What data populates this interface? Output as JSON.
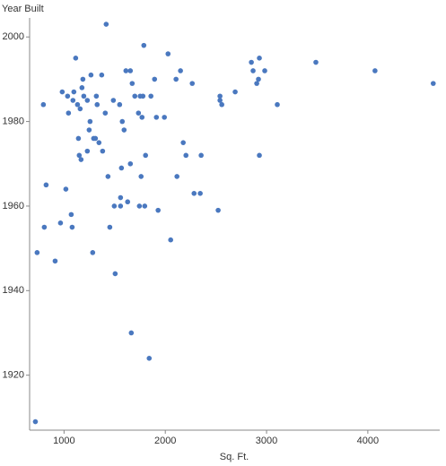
{
  "chart_data": {
    "type": "scatter",
    "y_label": "Year Built",
    "x_label": "Sq. Ft.",
    "color": "#4a78bf",
    "xlim": [
      660,
      4710
    ],
    "ylim": [
      1907,
      2004.5
    ],
    "xticks": [
      1000,
      2000,
      3000,
      4000
    ],
    "yticks": [
      1920,
      1940,
      1960,
      1980,
      2000
    ],
    "grid": false,
    "x": [
      717,
      734,
      796,
      805,
      823,
      912,
      965,
      982,
      1018,
      1035,
      1044,
      1071,
      1080,
      1088,
      1097,
      1115,
      1133,
      1142,
      1150,
      1159,
      1168,
      1177,
      1186,
      1195,
      1230,
      1230,
      1248,
      1257,
      1266,
      1283,
      1292,
      1310,
      1319,
      1327,
      1345,
      1372,
      1381,
      1407,
      1416,
      1434,
      1452,
      1487,
      1496,
      1505,
      1549,
      1558,
      1558,
      1567,
      1575,
      1593,
      1611,
      1628,
      1655,
      1655,
      1664,
      1673,
      1699,
      1735,
      1744,
      1752,
      1761,
      1770,
      1779,
      1788,
      1797,
      1805,
      1841,
      1858,
      1894,
      1912,
      1929,
      1991,
      2027,
      2053,
      2106,
      2115,
      2150,
      2177,
      2204,
      2266,
      2284,
      2345,
      2354,
      2522,
      2540,
      2540,
      2558,
      2690,
      2850,
      2867,
      2903,
      2920,
      2929,
      2929,
      2982,
      3106,
      3487,
      4071,
      4646
    ],
    "values": [
      1909,
      1949,
      1984,
      1955,
      1965,
      1947,
      1956,
      1987,
      1964,
      1986,
      1982,
      1958,
      1955,
      1985,
      1987,
      1995,
      1984,
      1976,
      1972,
      1983,
      1971,
      1988,
      1990,
      1986,
      1985,
      1973,
      1978,
      1980,
      1991,
      1949,
      1976,
      1976,
      1986,
      1984,
      1975,
      1991,
      1973,
      1982,
      2003,
      1967,
      1955,
      1985,
      1960,
      1944,
      1984,
      1960,
      1962,
      1969,
      1980,
      1978,
      1992,
      1961,
      1992,
      1970,
      1930,
      1989,
      1986,
      1982,
      1960,
      1986,
      1967,
      1981,
      1986,
      1998,
      1960,
      1972,
      1924,
      1986,
      1990,
      1981,
      1959,
      1981,
      1996,
      1952,
      1990,
      1967,
      1992,
      1975,
      1972,
      1989,
      1963,
      1963,
      1972,
      1959,
      1986,
      1985,
      1984,
      1987,
      1994,
      1992,
      1989,
      1990,
      1995,
      1972,
      1992,
      1984,
      1994,
      1992,
      1989
    ]
  }
}
